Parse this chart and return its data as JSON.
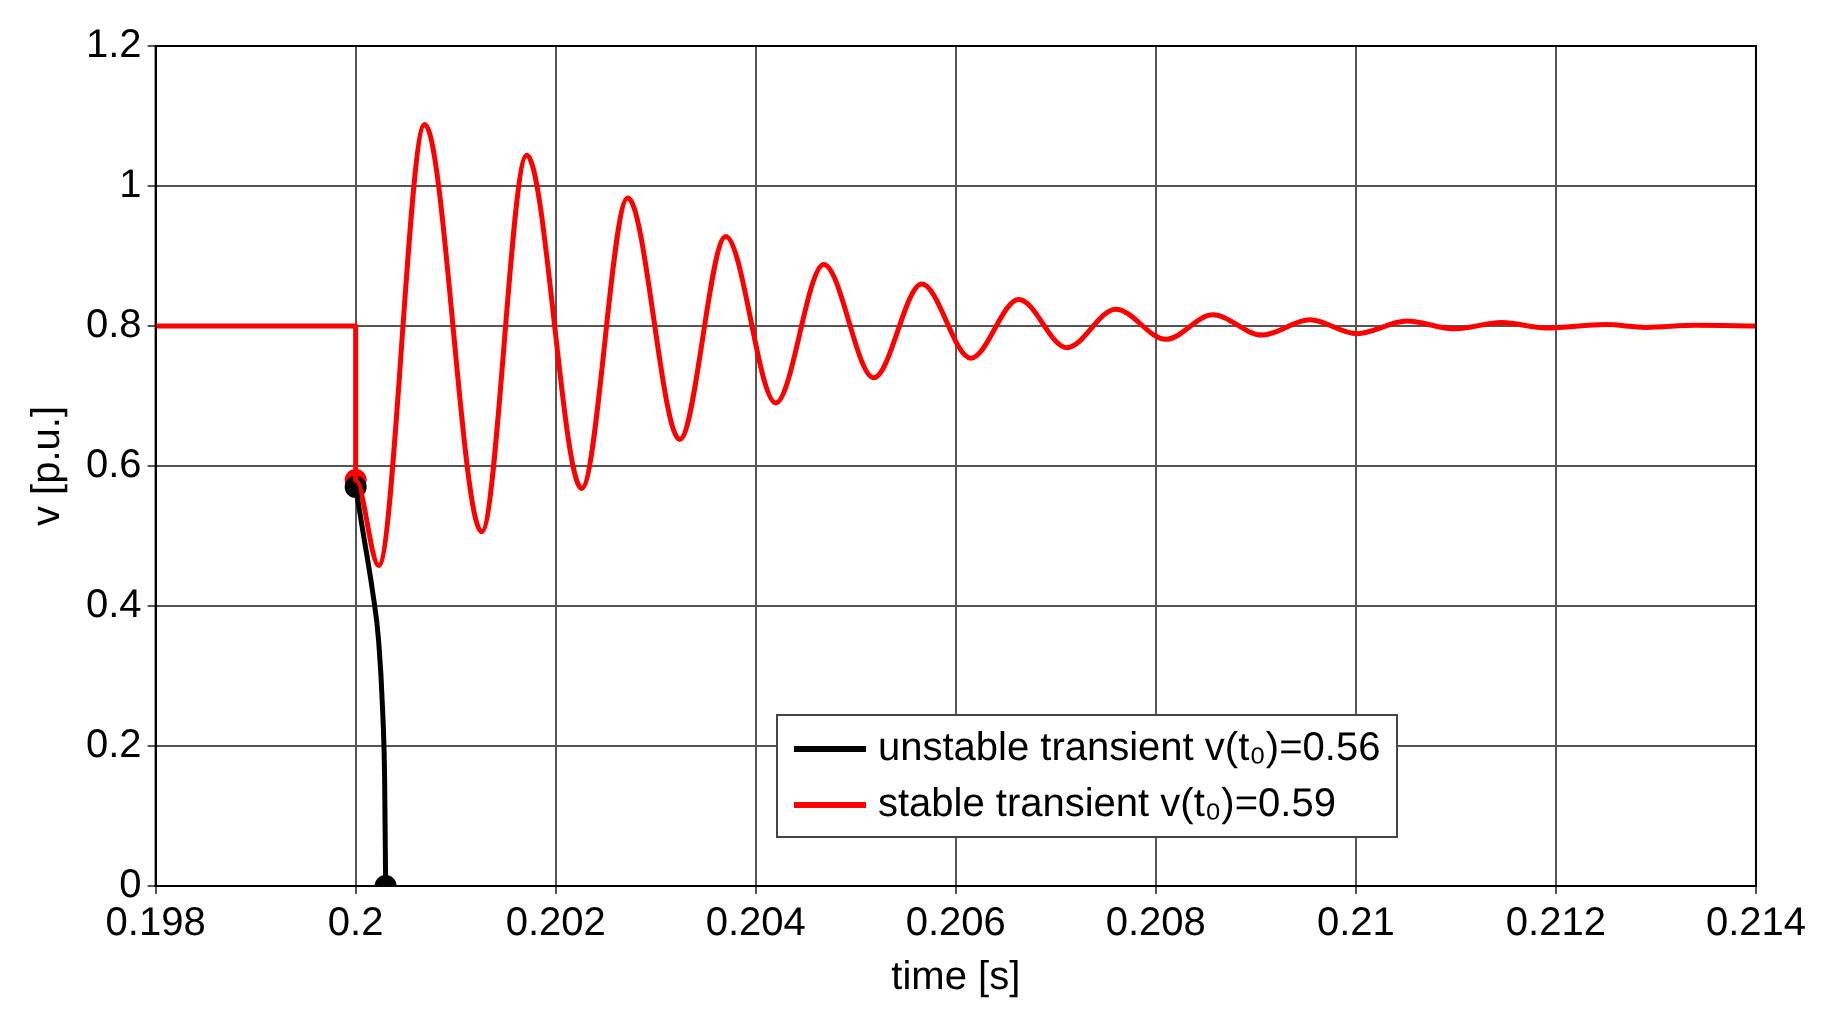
{
  "chart_data": {
    "type": "line",
    "xlabel": "time [s]",
    "ylabel": "v [p.u.]",
    "xlim": [
      0.198,
      0.214
    ],
    "xticks": [
      0.198,
      0.2,
      0.202,
      0.204,
      0.206,
      0.208,
      0.21,
      0.212,
      0.214
    ],
    "ylim": [
      0,
      1.2
    ],
    "yticks": [
      0,
      0.2,
      0.4,
      0.6,
      0.8,
      1,
      1.2
    ],
    "grid": true,
    "legend": "bottom right",
    "marker": "none",
    "line_style": "solid",
    "series": [
      {
        "name": "unstable transient  v(t₀)=0.56",
        "color": "#000000",
        "x": [
          0.2,
          0.20008,
          0.20017,
          0.20023,
          0.20027,
          0.20029,
          0.2003
        ],
        "values": [
          0.57,
          0.5,
          0.42,
          0.35,
          0.25,
          0.15,
          0.0
        ]
      },
      {
        "name": "stable transient  v(t₀)=0.59",
        "color": "#ff0000",
        "x": [
          0.198,
          0.2,
          0.2,
          0.20023,
          0.20069,
          0.20126,
          0.20171,
          0.20226,
          0.20272,
          0.20324,
          0.2037,
          0.2042,
          0.20468,
          0.20518,
          0.20566,
          0.20615,
          0.20663,
          0.20711,
          0.2076,
          0.2081,
          0.20857,
          0.20906,
          0.20954,
          0.21001,
          0.21051,
          0.21099,
          0.21146,
          0.2119,
          0.2125,
          0.2129,
          0.2134,
          0.214
        ],
        "values": [
          0.8,
          0.8,
          0.58,
          0.458,
          1.088,
          0.506,
          1.044,
          0.568,
          0.983,
          0.638,
          0.928,
          0.69,
          0.888,
          0.726,
          0.86,
          0.754,
          0.838,
          0.769,
          0.824,
          0.781,
          0.816,
          0.787,
          0.809,
          0.789,
          0.807,
          0.796,
          0.805,
          0.797,
          0.802,
          0.798,
          0.801,
          0.8
        ]
      },
      {
        "type": "scatter",
        "marker": "circle",
        "color": "#000000",
        "x": [
          0.2,
          0.2003
        ],
        "values": [
          0.57,
          0.0
        ]
      },
      {
        "type": "scatter",
        "marker": "circle",
        "color": "#ff0000",
        "x": [
          0.2
        ],
        "values": [
          0.58
        ]
      }
    ]
  }
}
